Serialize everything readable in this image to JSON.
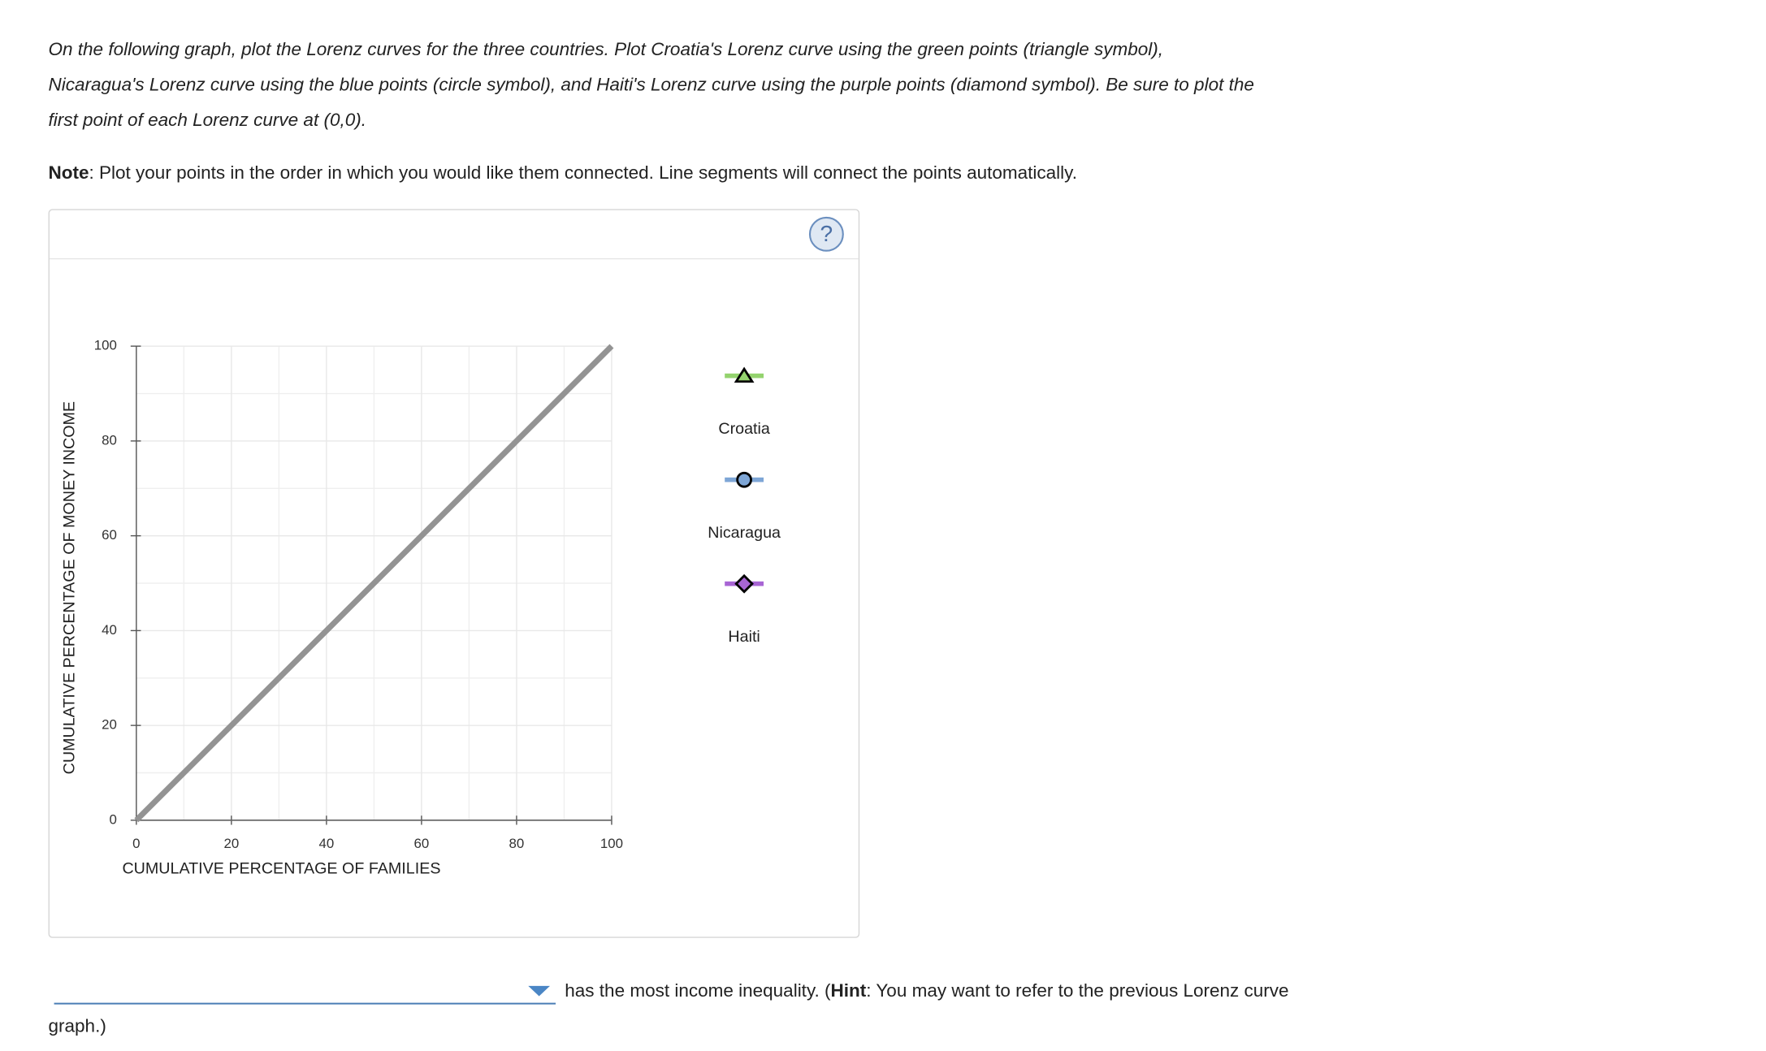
{
  "instructions": [
    "On the following graph, plot the Lorenz curves for the three countries. Plot Croatia's Lorenz curve using the green points (triangle symbol),",
    "Nicaragua's Lorenz curve using the blue points (circle symbol), and Haiti's Lorenz curve using the purple points (diamond symbol). Be sure to plot the",
    "first point of each Lorenz curve at (0,0)."
  ],
  "note": {
    "label": "Note",
    "text": ": Plot your points in the order in which you would like them connected. Line segments will connect the points automatically."
  },
  "help_icon": "?",
  "chart_data": {
    "type": "line",
    "x_label": "CUMULATIVE PERCENTAGE OF FAMILIES",
    "y_label": "CUMULATIVE PERCENTAGE OF MONEY INCOME",
    "xlim": [
      0,
      100
    ],
    "ylim": [
      0,
      100
    ],
    "xticks": [
      0,
      20,
      40,
      60,
      80,
      100
    ],
    "yticks": [
      0,
      20,
      40,
      60,
      80,
      100
    ],
    "grid": true,
    "equality_line": {
      "x": [
        0,
        100
      ],
      "y": [
        0,
        100
      ],
      "color": "#939393"
    },
    "series": [
      {
        "name": "Croatia",
        "color": "#94d36e",
        "marker": "triangle",
        "values": []
      },
      {
        "name": "Nicaragua",
        "color": "#7ea6d6",
        "marker": "circle",
        "values": []
      },
      {
        "name": "Haiti",
        "color": "#a865d4",
        "marker": "diamond",
        "values": []
      }
    ]
  },
  "question": {
    "text": "has the most income inequality. (",
    "hint_label": "Hint",
    "hint_text": ": You may want to refer to the previous Lorenz curve",
    "hint_end": "graph.)"
  }
}
